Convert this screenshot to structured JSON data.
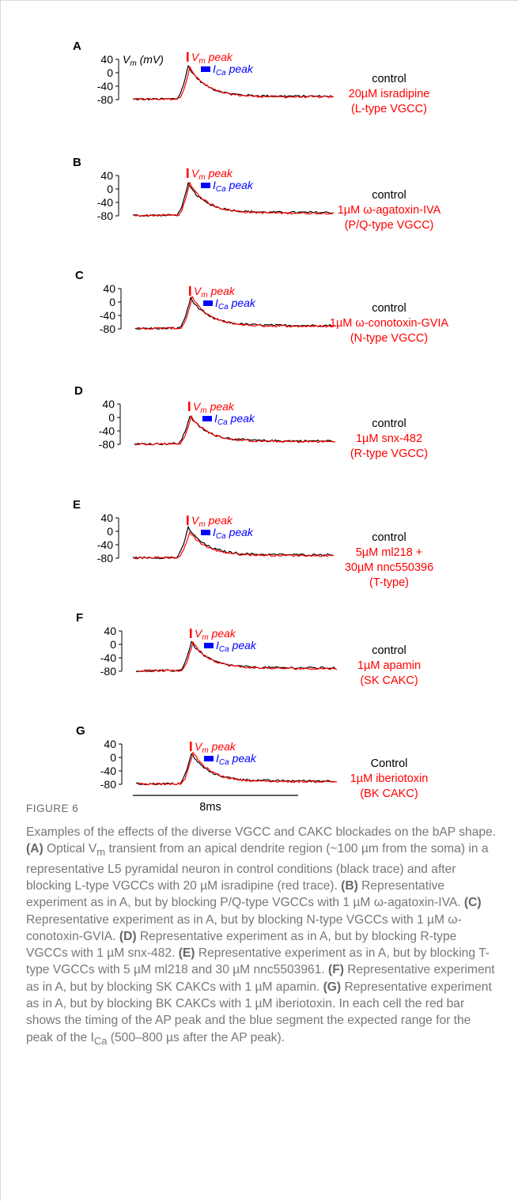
{
  "colors": {
    "control": "#000000",
    "drug": "#ff0000",
    "vm_peak": "#ff0000",
    "ica_peak": "#0000ff"
  },
  "axis": {
    "y_unit_label": "(mV)",
    "y_ticks": [
      "40",
      "0",
      "-40",
      "-80"
    ],
    "x_scale_label": "8ms"
  },
  "markers": {
    "vm_peak_label": "V",
    "vm_peak_sub": "m",
    "vm_peak_word": " peak",
    "ica_peak_label": "I",
    "ica_peak_sub": "Ca",
    "ica_peak_word": " peak"
  },
  "panels": [
    {
      "letter": "A",
      "control_label": "control",
      "drug_lines": [
        "20µM isradipine",
        "(L-type VGCC)"
      ]
    },
    {
      "letter": "B",
      "control_label": "control",
      "drug_lines": [
        "1µM ω-agatoxin-IVA",
        "(P/Q-type VGCC)"
      ]
    },
    {
      "letter": "C",
      "control_label": "control",
      "drug_lines": [
        "1µM ω-conotoxin-GVIA",
        "(N-type VGCC)"
      ]
    },
    {
      "letter": "D",
      "control_label": "control",
      "drug_lines": [
        "1µM snx-482",
        "(R-type VGCC)"
      ]
    },
    {
      "letter": "E",
      "control_label": "control",
      "drug_lines": [
        "5µM ml218 +",
        "30µM nnc550396",
        "(T-type)"
      ]
    },
    {
      "letter": "F",
      "control_label": "control",
      "drug_lines": [
        "1µM apamin",
        "(SK CAKC)"
      ]
    },
    {
      "letter": "G",
      "control_label": "Control",
      "drug_lines": [
        "1µM iberiotoxin",
        "(BK CAKC)"
      ]
    }
  ],
  "caption": {
    "figure_label": "FIGURE 6",
    "intro": "Examples of the effects of the diverse VGCC and CAKC blockades on the bAP shape. ",
    "A_label": "(A)",
    "A_text": " Optical V",
    "A_sub": "m",
    "A_text2": " transient from an apical dendrite region (~100 µm from the soma) in a representative L5 pyramidal neuron in control conditions (black trace) and after blocking L-type VGCCs with 20 µM isradipine (red trace). ",
    "B_label": "(B)",
    "B_text": " Representative experiment as in A, but by blocking P/Q-type VGCCs with 1 µM ω-agatoxin-IVA. ",
    "C_label": "(C)",
    "C_text": " Representative experiment as in A, but by blocking N-type VGCCs with 1 µM ω-conotoxin-GVIA. ",
    "D_label": "(D)",
    "D_text": " Representative experiment as in A, but by blocking R-type VGCCs with 1 µM snx-482. ",
    "E_label": "(E)",
    "E_text": " Representative experiment as in A, but by blocking T-type VGCCs with 5 µM ml218 and 30 µM nnc5503961. ",
    "F_label": "(F)",
    "F_text": " Representative experiment as in A, but by blocking SK CAKCs with 1 µM apamin. ",
    "G_label": "(G)",
    "G_text": " Representative experiment as in A, but by blocking BK CAKCs with 1 µM iberiotoxin. In each cell the red bar shows the timing of the AP peak and the blue segment the expected range for the peak of the I",
    "G_sub": "Ca",
    "G_text2": " (500–800 µs after the AP peak)."
  }
}
